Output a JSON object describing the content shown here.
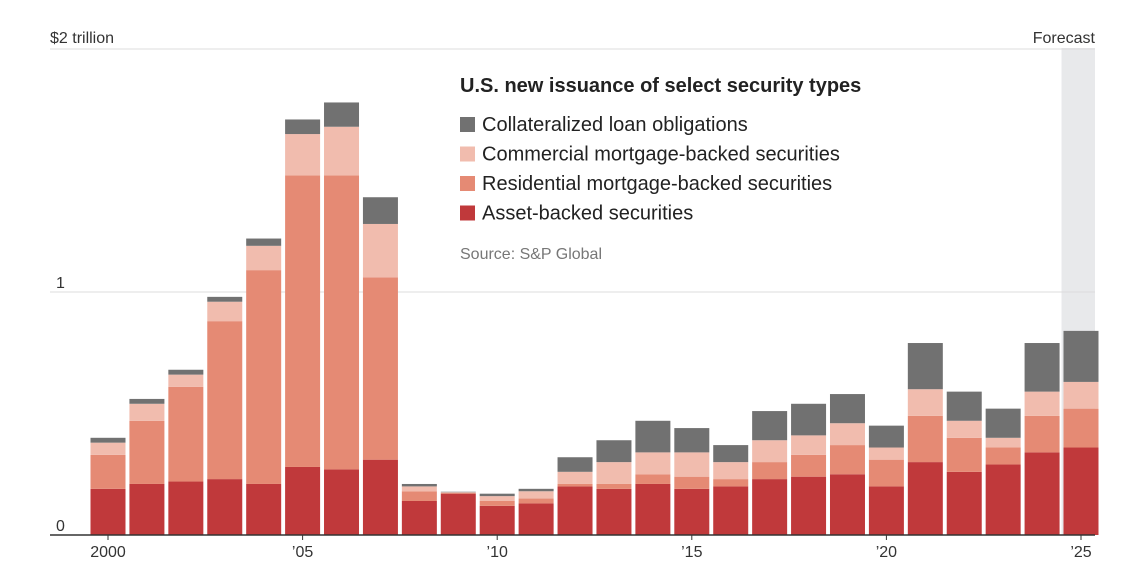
{
  "chart_data": {
    "type": "bar",
    "stacked": true,
    "title": "U.S. new issuance of select security types",
    "source": "Source: S&P Global",
    "y_unit_label": "$2 trillion",
    "forecast_label": "Forecast",
    "ylim": [
      0,
      2
    ],
    "y_ticks": [
      {
        "value": 0,
        "label": "0"
      },
      {
        "value": 1,
        "label": "1"
      },
      {
        "value": 2,
        "label": ""
      }
    ],
    "x_tick_labels": [
      {
        "year": 2000,
        "label": "2000"
      },
      {
        "year": 2005,
        "label": "’05"
      },
      {
        "year": 2010,
        "label": "’10"
      },
      {
        "year": 2015,
        "label": "’15"
      },
      {
        "year": 2020,
        "label": "’20"
      },
      {
        "year": 2025,
        "label": "’25"
      }
    ],
    "forecast_years": [
      2025
    ],
    "categories": [
      2000,
      2001,
      2002,
      2003,
      2004,
      2005,
      2006,
      2007,
      2008,
      2009,
      2010,
      2011,
      2012,
      2013,
      2014,
      2015,
      2016,
      2017,
      2018,
      2019,
      2020,
      2021,
      2022,
      2023,
      2024,
      2025
    ],
    "series": [
      {
        "name": "Asset-backed securities",
        "color": "#c0393b",
        "values": [
          0.19,
          0.21,
          0.22,
          0.23,
          0.21,
          0.28,
          0.27,
          0.31,
          0.14,
          0.17,
          0.12,
          0.13,
          0.2,
          0.19,
          0.21,
          0.19,
          0.2,
          0.23,
          0.24,
          0.25,
          0.2,
          0.3,
          0.26,
          0.29,
          0.34,
          0.36
        ]
      },
      {
        "name": "Residential mortgage-backed securities",
        "color": "#e58a74",
        "values": [
          0.14,
          0.26,
          0.39,
          0.65,
          0.88,
          1.2,
          1.21,
          0.75,
          0.04,
          0.003,
          0.02,
          0.02,
          0.01,
          0.02,
          0.04,
          0.05,
          0.03,
          0.07,
          0.09,
          0.12,
          0.11,
          0.19,
          0.14,
          0.07,
          0.15,
          0.16
        ]
      },
      {
        "name": "Commercial mortgage-backed securities",
        "color": "#f1bcae",
        "values": [
          0.05,
          0.07,
          0.05,
          0.08,
          0.1,
          0.17,
          0.2,
          0.22,
          0.02,
          0.003,
          0.02,
          0.03,
          0.05,
          0.09,
          0.09,
          0.1,
          0.07,
          0.09,
          0.08,
          0.09,
          0.05,
          0.11,
          0.07,
          0.04,
          0.1,
          0.11
        ]
      },
      {
        "name": "Collateralized loan obligations",
        "color": "#717171",
        "values": [
          0.02,
          0.02,
          0.02,
          0.02,
          0.03,
          0.06,
          0.1,
          0.11,
          0.01,
          0.002,
          0.01,
          0.01,
          0.06,
          0.09,
          0.13,
          0.1,
          0.07,
          0.12,
          0.13,
          0.12,
          0.09,
          0.19,
          0.12,
          0.12,
          0.2,
          0.21
        ]
      }
    ],
    "legend_order": [
      "Collateralized loan obligations",
      "Commercial mortgage-backed securities",
      "Residential mortgage-backed securities",
      "Asset-backed securities"
    ],
    "grid": true,
    "forecast_shade_color": "#e8e9eb",
    "gridline_color": "#dcdcdc",
    "baseline_color": "#333333"
  }
}
